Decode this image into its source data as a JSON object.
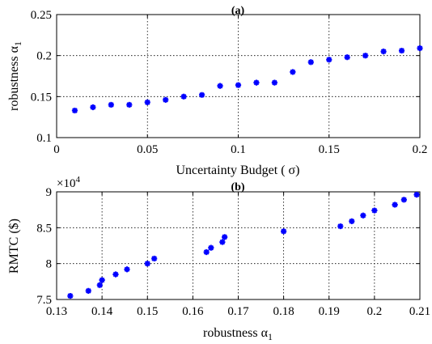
{
  "chart_data": [
    {
      "type": "scatter",
      "title": "(a)",
      "xlabel": "Uncertainty Budget ( σ)",
      "ylabel": "robustness α",
      "ylabel_sub": "1",
      "xlim": [
        0,
        0.2
      ],
      "ylim": [
        0.1,
        0.25
      ],
      "xticks": [
        0,
        0.05,
        0.1,
        0.15,
        0.2
      ],
      "xtick_labels": [
        "0",
        "0.05",
        "0.1",
        "0.15",
        "0.2"
      ],
      "yticks": [
        0.1,
        0.15,
        0.2,
        0.25
      ],
      "ytick_labels": [
        "0.1",
        "0.15",
        "0.2",
        "0.25"
      ],
      "grid": true,
      "marker": "asterisk",
      "color": "#0000ff",
      "points": [
        [
          0.01,
          0.133
        ],
        [
          0.02,
          0.137
        ],
        [
          0.03,
          0.14
        ],
        [
          0.04,
          0.14
        ],
        [
          0.05,
          0.143
        ],
        [
          0.06,
          0.146
        ],
        [
          0.07,
          0.15
        ],
        [
          0.08,
          0.152
        ],
        [
          0.09,
          0.163
        ],
        [
          0.1,
          0.164
        ],
        [
          0.11,
          0.167
        ],
        [
          0.12,
          0.167
        ],
        [
          0.13,
          0.18
        ],
        [
          0.14,
          0.192
        ],
        [
          0.15,
          0.195
        ],
        [
          0.16,
          0.198
        ],
        [
          0.17,
          0.2
        ],
        [
          0.18,
          0.205
        ],
        [
          0.19,
          0.206
        ],
        [
          0.2,
          0.209
        ]
      ]
    },
    {
      "type": "scatter",
      "title": "(b)",
      "xlabel": "robustness α",
      "xlabel_sub": "1",
      "ylabel": "RMTC ($)",
      "y_multiplier_base": "×10",
      "y_multiplier_exp": "4",
      "xlim": [
        0.13,
        0.21
      ],
      "ylim": [
        7.5,
        9
      ],
      "xticks": [
        0.13,
        0.14,
        0.15,
        0.16,
        0.17,
        0.18,
        0.19,
        0.2,
        0.21
      ],
      "xtick_labels": [
        "0.13",
        "0.14",
        "0.15",
        "0.16",
        "0.17",
        "0.18",
        "0.19",
        "0.2",
        "0.21"
      ],
      "yticks": [
        7.5,
        8,
        8.5,
        9
      ],
      "ytick_labels": [
        "7.5",
        "8",
        "8.5",
        "9"
      ],
      "grid": true,
      "marker": "asterisk",
      "color": "#0000ff",
      "points": [
        [
          0.133,
          7.55
        ],
        [
          0.137,
          7.62
        ],
        [
          0.1395,
          7.7
        ],
        [
          0.14,
          7.77
        ],
        [
          0.143,
          7.85
        ],
        [
          0.1455,
          7.92
        ],
        [
          0.15,
          8.0
        ],
        [
          0.1515,
          8.07
        ],
        [
          0.163,
          8.16
        ],
        [
          0.164,
          8.22
        ],
        [
          0.1665,
          8.3
        ],
        [
          0.167,
          8.37
        ],
        [
          0.18,
          8.45
        ],
        [
          0.1925,
          8.52
        ],
        [
          0.195,
          8.59
        ],
        [
          0.1975,
          8.67
        ],
        [
          0.2,
          8.74
        ],
        [
          0.2045,
          8.82
        ],
        [
          0.2065,
          8.89
        ],
        [
          0.2093,
          8.96
        ]
      ]
    }
  ]
}
